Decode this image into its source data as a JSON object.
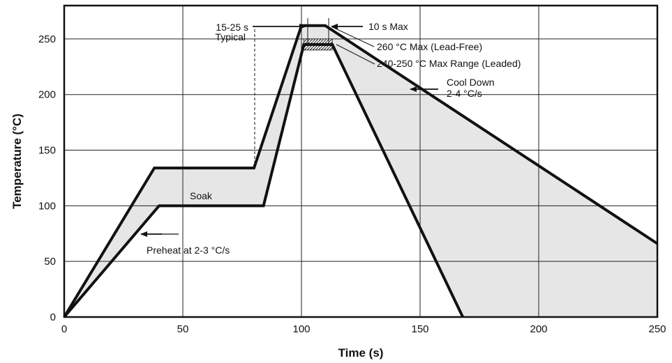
{
  "chart_data": {
    "type": "line",
    "title": "",
    "xlabel": "Time (s)",
    "ylabel": "Temperature (°C)",
    "xlim": [
      0,
      250
    ],
    "ylim": [
      0,
      280
    ],
    "xticks": [
      0,
      50,
      100,
      150,
      200,
      250
    ],
    "yticks": [
      0,
      50,
      100,
      150,
      200,
      250
    ],
    "grid": true,
    "fill_color": "#e6e6e6",
    "line_color": "#111111",
    "series": [
      {
        "role": "upper-limit",
        "points": [
          [
            0,
            0
          ],
          [
            38,
            134
          ],
          [
            80,
            134
          ],
          [
            100,
            262
          ],
          [
            110,
            262
          ],
          [
            250,
            66
          ]
        ]
      },
      {
        "role": "lower-limit",
        "points": [
          [
            0,
            0
          ],
          [
            40,
            100
          ],
          [
            84,
            100
          ],
          [
            101,
            245
          ],
          [
            113,
            245
          ],
          [
            168,
            0
          ]
        ]
      }
    ],
    "peak_band": {
      "x": [
        101,
        113
      ],
      "y": [
        240,
        250
      ],
      "label": "240-250 °C Max Range (Leaded)"
    },
    "annotations": {
      "dwell": "15-25 s",
      "dwell_line2": "Typical",
      "max_time": "10 s Max",
      "peak": "260 °C Max (Lead-Free)",
      "cool": "Cool Down",
      "cool_line2": "2-4 °C/s",
      "soak": "Soak",
      "preheat": "Preheat at 2-3 °C/s"
    }
  }
}
